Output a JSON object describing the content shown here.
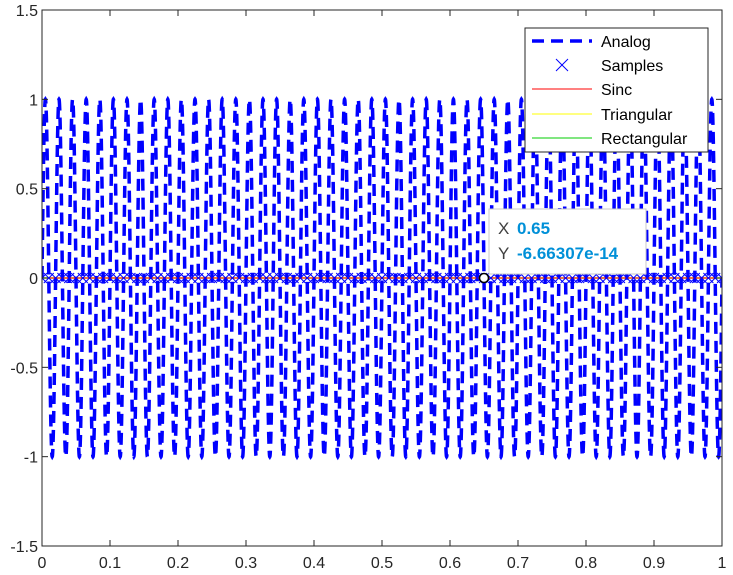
{
  "chart_data": {
    "type": "line",
    "title": "",
    "xlabel": "",
    "ylabel": "",
    "xlim": [
      0,
      1
    ],
    "ylim": [
      -1.5,
      1.5
    ],
    "x_ticks": [
      "0",
      "0.1",
      "0.2",
      "0.3",
      "0.4",
      "0.5",
      "0.6",
      "0.7",
      "0.8",
      "0.9",
      "1"
    ],
    "y_ticks": [
      "1.5",
      "1",
      "0.5",
      "0",
      "-0.5",
      "-1",
      "-1.5"
    ],
    "signal": {
      "function": "sin",
      "frequency": 50,
      "amplitude": 1,
      "sample_period": 0.01
    },
    "series": [
      {
        "name": "Analog",
        "color": "#0000ff",
        "style": "dashed-thick"
      },
      {
        "name": "Samples",
        "color": "#0000ff",
        "style": "x-marker"
      },
      {
        "name": "Sinc",
        "color": "#ff0000",
        "style": "solid"
      },
      {
        "name": "Triangular",
        "color": "#ffff00",
        "style": "solid"
      },
      {
        "name": "Rectangular",
        "color": "#00cc00",
        "style": "solid"
      }
    ],
    "legend_position": "top-right",
    "grid": false,
    "datatip": {
      "x_label": "X",
      "x_value": "0.65",
      "y_label": "Y",
      "y_value": "-6.66307e-14"
    }
  }
}
